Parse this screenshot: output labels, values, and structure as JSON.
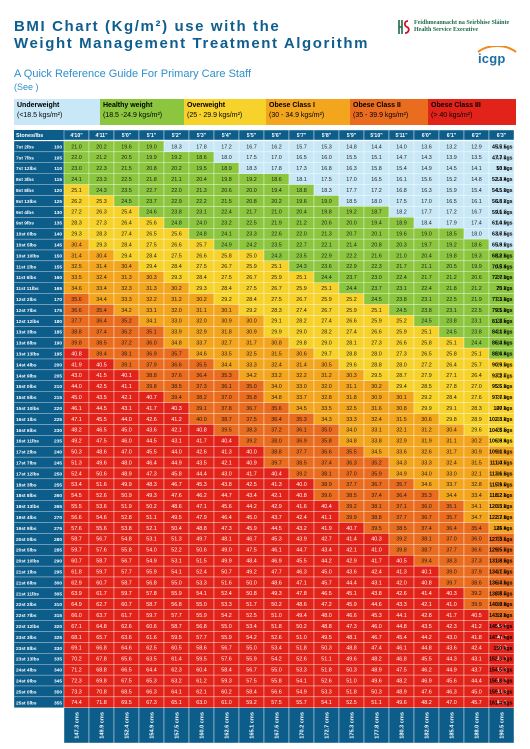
{
  "header": {
    "title_line1": "BMI Chart (Kg/m²) use with the",
    "title_line2": "Weight Management Treatment Algorithm",
    "subtitle": "A Quick Reference Guide For Primary Care Staff",
    "see_note": "(See )",
    "hse_name_irish": "Feidhmeannacht na Seirbhíse Sláinte",
    "hse_name_english": "Health Service Executive",
    "icgp_logo": "icgp"
  },
  "categories": [
    {
      "name": "Underweight",
      "range": "(<18.5 kgs/m²)",
      "color": "#c9e8f7"
    },
    {
      "name": "Healthy weight",
      "range": "(18.5 -24.9 kgs/m²)",
      "color": "#8cc63f"
    },
    {
      "name": "Overweight",
      "range": "(25 - 29.9 kgs/m²)",
      "color": "#f6d22a"
    },
    {
      "name": "Obese Class I",
      "range": "(30 - 34.9 kgs/m²)",
      "color": "#f3a51d"
    },
    {
      "name": "Obese Class II",
      "range": "(35 - 39.9 kgs/m²)",
      "color": "#ea6c1f"
    },
    {
      "name": "Obese Class III",
      "range": "(> 40 kgs/m²)",
      "color": "#e2231a"
    }
  ],
  "chart_data": {
    "type": "table",
    "description_header": "Stones/lbs",
    "height_ft_in": [
      "4'10\"",
      "4'11\"",
      "5'0\"",
      "5'1\"",
      "5'2\"",
      "5'3\"",
      "5'4\"",
      "5'5\"",
      "5'6\"",
      "5'7\"",
      "5'8\"",
      "5'9\"",
      "5'10\"",
      "5'11\"",
      "6'0\"",
      "6'1\"",
      "6'2\"",
      "6'3\""
    ],
    "height_cm": [
      147.3,
      149.9,
      152.4,
      154.9,
      157.5,
      160.0,
      162.6,
      165.1,
      167.6,
      170.2,
      172.7,
      175.3,
      177.8,
      180.3,
      182.9,
      185.4,
      188.0,
      190.5
    ],
    "rows": [
      {
        "st": "7st 2lbs",
        "lb": 100,
        "kg": 45.5
      },
      {
        "st": "7st 7lbs",
        "lb": 105,
        "kg": 47.7
      },
      {
        "st": "7st 12lbs",
        "lb": 110,
        "kg": 50
      },
      {
        "st": "8st 3lbs",
        "lb": 115,
        "kg": 52.3
      },
      {
        "st": "8st 8lbs",
        "lb": 120,
        "kg": 54.5
      },
      {
        "st": "8st 13lbs",
        "lb": 125,
        "kg": 56.8
      },
      {
        "st": "9st 4lbs",
        "lb": 130,
        "kg": 59.1
      },
      {
        "st": "9st 9lbs",
        "lb": 135,
        "kg": 61.4
      },
      {
        "st": "10st 0lbs",
        "lb": 140,
        "kg": 63.6
      },
      {
        "st": "10st 5lbs",
        "lb": 145,
        "kg": 65.9
      },
      {
        "st": "10st 10lbs",
        "lb": 150,
        "kg": 68.2
      },
      {
        "st": "11st 1lbs",
        "lb": 155,
        "kg": 70.5
      },
      {
        "st": "11st 6lbs",
        "lb": 160,
        "kg": 72.7
      },
      {
        "st": "11st 11lbs",
        "lb": 165,
        "kg": 75
      },
      {
        "st": "12st 2lbs",
        "lb": 170,
        "kg": 77.3
      },
      {
        "st": "12st 7lbs",
        "lb": 175,
        "kg": 79.5
      },
      {
        "st": "12st 12lbs",
        "lb": 180,
        "kg": 81.8
      },
      {
        "st": "13st 3lbs",
        "lb": 185,
        "kg": 84.1
      },
      {
        "st": "13st 8lbs",
        "lb": 190,
        "kg": 86.4
      },
      {
        "st": "13st 13lbs",
        "lb": 195,
        "kg": 88.6
      },
      {
        "st": "14st 4lbs",
        "lb": 200,
        "kg": 90.9
      },
      {
        "st": "14st 9lbs",
        "lb": 205,
        "kg": 93.2
      },
      {
        "st": "15st 0lbs",
        "lb": 210,
        "kg": 95.5
      },
      {
        "st": "15st 5lbs",
        "lb": 215,
        "kg": 97.7
      },
      {
        "st": "15st 10lbs",
        "lb": 220,
        "kg": 100
      },
      {
        "st": "16st 1lbs",
        "lb": 225,
        "kg": 102.3
      },
      {
        "st": "16st 6lbs",
        "lb": 230,
        "kg": 104.5
      },
      {
        "st": "16st 11lbs",
        "lb": 235,
        "kg": 106.8
      },
      {
        "st": "17st 2lbs",
        "lb": 240,
        "kg": 109.1
      },
      {
        "st": "17st 7lbs",
        "lb": 245,
        "kg": 111.4
      },
      {
        "st": "17st 12lbs",
        "lb": 250,
        "kg": 113.6
      },
      {
        "st": "18st 3lbs",
        "lb": 255,
        "kg": 115.9
      },
      {
        "st": "18st 8lbs",
        "lb": 260,
        "kg": 118.2
      },
      {
        "st": "18st 13lbs",
        "lb": 265,
        "kg": 120.5
      },
      {
        "st": "19st 4lbs",
        "lb": 270,
        "kg": 122.7
      },
      {
        "st": "19st 9lbs",
        "lb": 275,
        "kg": 125
      },
      {
        "st": "20st 0lbs",
        "lb": 280,
        "kg": 127.3
      },
      {
        "st": "20st 5lbs",
        "lb": 285,
        "kg": 129.5
      },
      {
        "st": "20st 10lbs",
        "lb": 290,
        "kg": 131.8
      },
      {
        "st": "21st 1lbs",
        "lb": 295,
        "kg": 134.1
      },
      {
        "st": "21st 6lbs",
        "lb": 300,
        "kg": 136.4
      },
      {
        "st": "21st 11lbs",
        "lb": 305,
        "kg": 138.6
      },
      {
        "st": "22st 2lbs",
        "lb": 310,
        "kg": 140.9
      },
      {
        "st": "22st 7lbs",
        "lb": 315,
        "kg": 143.2
      },
      {
        "st": "22st 12lbs",
        "lb": 320,
        "kg": 145.5
      },
      {
        "st": "23st 3lbs",
        "lb": 325,
        "kg": 147.7
      },
      {
        "st": "23st 8lbs",
        "lb": 330,
        "kg": 150
      },
      {
        "st": "23st 13lbs",
        "lb": 335,
        "kg": 152.3
      },
      {
        "st": "24st 4lbs",
        "lb": 340,
        "kg": 154.5
      },
      {
        "st": "24st 9lbs",
        "lb": 345,
        "kg": 156.8
      },
      {
        "st": "25st 0lbs",
        "lb": 350,
        "kg": 159.1
      },
      {
        "st": "25st 5lbs",
        "lb": 355,
        "kg": 161.4
      }
    ],
    "weight_unit_suffix": "kgs",
    "height_unit_suffix": "cms"
  }
}
